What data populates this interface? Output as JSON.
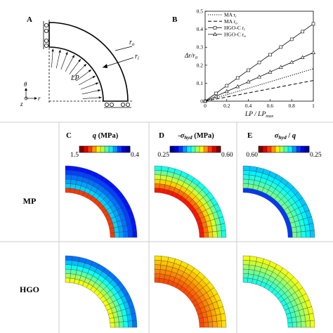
{
  "panels": {
    "A": {
      "letter": "A",
      "labels": {
        "ro": "r",
        "ro_sub": "o",
        "ri": "r",
        "ri_sub": "i",
        "lp": "LP",
        "theta": "θ",
        "r_axis": "r",
        "z_axis": "z"
      }
    },
    "B": {
      "letter": "B"
    },
    "C": {
      "letter": "C",
      "title": "q (MPa)",
      "title_var": "q",
      "title_unit": " (MPa)",
      "cbar_min": "1.5",
      "cbar_max": "0.4"
    },
    "D": {
      "letter": "D",
      "title_pre": "-",
      "title_var": "σ",
      "title_sub": "hyd",
      "title_unit": " (MPa)",
      "cbar_min": "0.25",
      "cbar_max": "0.60"
    },
    "E": {
      "letter": "E",
      "title_var": "σ",
      "title_sub": "hyd",
      "title_mid": " / ",
      "title_var2": "q",
      "cbar_min": "0.60",
      "cbar_max": "0.25"
    }
  },
  "rows": {
    "mp": "MP",
    "hgo": "HGO"
  },
  "colors": {
    "jet": [
      "#00008f",
      "#0000ff",
      "#0080ff",
      "#00ffff",
      "#80ff80",
      "#ffff00",
      "#ff8000",
      "#ff0000",
      "#800000"
    ],
    "grid": "#cccccc"
  },
  "chart_data": {
    "type": "line",
    "xlabel": "LP / LPmax",
    "xlabel_main": "LP / LP",
    "xlabel_sub": "max",
    "ylabel": "Δr/r0",
    "ylabel_main": "Δr/r",
    "ylabel_sub": "0",
    "xlim": [
      0,
      1
    ],
    "ylim": [
      0,
      0.5
    ],
    "xticks": [
      "0",
      "0.2",
      "0.4",
      "0.6",
      "0.8",
      "1"
    ],
    "yticks": [
      "0",
      "0.1",
      "0.2",
      "0.3",
      "0.4",
      "0.5"
    ],
    "legend_position": "top-left",
    "series": [
      {
        "name": "MA ri",
        "name_main": "MA r",
        "name_sub": "i",
        "style": "dotted",
        "x": [
          0,
          1
        ],
        "y": [
          0,
          0.18
        ]
      },
      {
        "name": "MA ro",
        "name_main": "MA r",
        "name_sub": "o",
        "style": "dashed",
        "x": [
          0,
          1
        ],
        "y": [
          0,
          0.115
        ]
      },
      {
        "name": "HGO-C ri",
        "name_main": "HGO-C r",
        "name_sub": "i",
        "style": "solid-square",
        "x": [
          0,
          0.05,
          0.1,
          0.15,
          0.2,
          0.25,
          0.3,
          0.35,
          0.4,
          0.45,
          0.5,
          0.55,
          0.6,
          0.65,
          0.7,
          0.75,
          0.8,
          0.85,
          0.9,
          0.95,
          1
        ],
        "y": [
          0,
          0.022,
          0.043,
          0.065,
          0.086,
          0.108,
          0.129,
          0.151,
          0.172,
          0.194,
          0.215,
          0.237,
          0.258,
          0.28,
          0.301,
          0.323,
          0.344,
          0.366,
          0.387,
          0.409,
          0.43
        ]
      },
      {
        "name": "HGO-C ro",
        "name_main": "HGO-C r",
        "name_sub": "o",
        "style": "solid-triangle",
        "x": [
          0,
          0.05,
          0.1,
          0.15,
          0.2,
          0.25,
          0.3,
          0.35,
          0.4,
          0.45,
          0.5,
          0.55,
          0.6,
          0.65,
          0.7,
          0.75,
          0.8,
          0.85,
          0.9,
          0.95,
          1
        ],
        "y": [
          0,
          0.0135,
          0.027,
          0.0405,
          0.054,
          0.0675,
          0.081,
          0.0945,
          0.108,
          0.1215,
          0.135,
          0.1485,
          0.162,
          0.1755,
          0.189,
          0.2025,
          0.216,
          0.2295,
          0.243,
          0.2565,
          0.27
        ]
      }
    ]
  }
}
